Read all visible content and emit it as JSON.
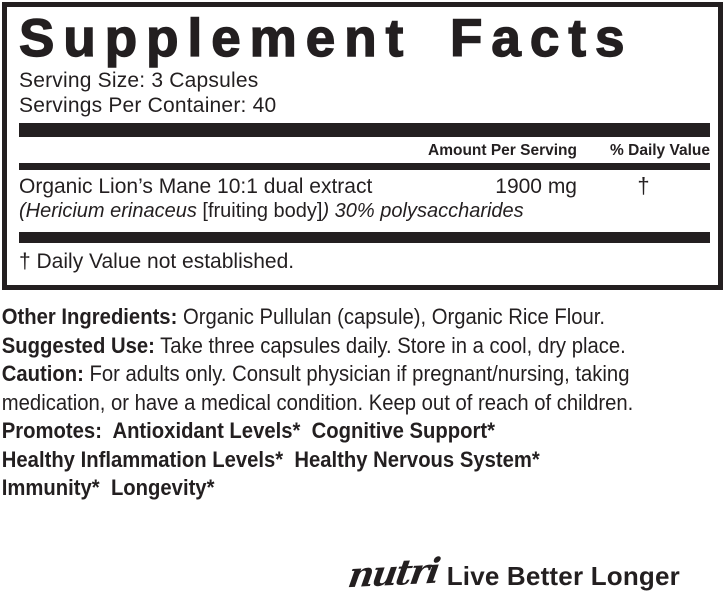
{
  "colors": {
    "ink": "#231f20",
    "background": "#ffffff"
  },
  "panel": {
    "title": "Supplement Facts",
    "serving_size": "Serving Size: 3 Capsules",
    "servings_per_container": "Servings Per Container: 40",
    "columns": {
      "amount": "Amount Per Serving",
      "daily_value": "% Daily Value"
    },
    "rows": [
      {
        "name": "Organic Lion’s Mane 10:1 dual extract",
        "amount": "1900 mg",
        "daily_value": "†",
        "detail": {
          "italic_open": "(Hericium erinaceus ",
          "upright": "[fruiting body]",
          "italic_close": ") 30% polysaccharides"
        }
      }
    ],
    "footnote": "† Daily Value not established."
  },
  "info": {
    "other_ingredients": {
      "label": "Other Ingredients:",
      "text": " Organic Pullulan (capsule), Organic Rice Flour."
    },
    "suggested_use": {
      "label": "Suggested Use:",
      "text": " Take three capsules daily. Store in a cool, dry place."
    },
    "caution": {
      "label": "Caution:",
      "line1": " For adults only. Consult physician if pregnant/nursing, taking",
      "line2": "medication, or have a medical condition. Keep out of reach of children."
    },
    "promotes_lines": [
      "Promotes:  Antioxidant Levels*  Cognitive Support*",
      "Healthy Inflammation Levels*  Healthy Nervous System*",
      "Immunity*  Longevity*"
    ]
  },
  "brand": {
    "logo": "nutri",
    "tagline": "Live Better Longer"
  }
}
